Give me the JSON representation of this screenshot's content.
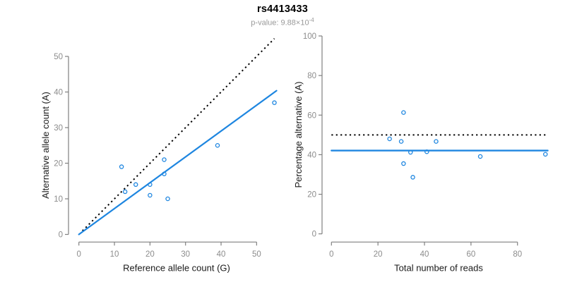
{
  "header": {
    "title": "rs4413433",
    "subtitle_main": "p-value: 9.88×10",
    "subtitle_sup": "-4"
  },
  "colors": {
    "accent_blue": "#1e86e0",
    "reference_black": "#000000",
    "axis_gray": "#808080",
    "tick_label_gray": "#8c8c8c",
    "subtitle_gray": "#999999"
  },
  "chart_data": [
    {
      "id": "allele-counts",
      "type": "scatter",
      "xlabel": "Reference allele count (G)",
      "ylabel": "Alternative allele count (A)",
      "xlim": [
        0,
        57
      ],
      "ylim": [
        0,
        57
      ],
      "xticks": [
        0,
        10,
        20,
        30,
        40,
        50
      ],
      "yticks": [
        0,
        10,
        20,
        30,
        40,
        50
      ],
      "grid": false,
      "legend": "none",
      "points": [
        [
          12,
          19
        ],
        [
          13,
          12
        ],
        [
          16,
          14
        ],
        [
          20,
          11
        ],
        [
          20,
          14
        ],
        [
          24,
          17
        ],
        [
          24,
          21
        ],
        [
          25,
          10
        ],
        [
          39,
          25
        ],
        [
          55,
          37
        ]
      ],
      "lines": [
        {
          "name": "identity-line",
          "kind": "slope",
          "slope": 1,
          "intercept": 0,
          "x_from": 1,
          "x_to": 55,
          "style": "dotted",
          "color": "#000000",
          "width": 2
        },
        {
          "name": "fit-line",
          "kind": "slope",
          "slope": 0.726,
          "intercept": 0,
          "x_from": 0,
          "x_to": 55.6,
          "style": "solid",
          "color": "#1e86e0",
          "width": 2.2
        }
      ]
    },
    {
      "id": "percentage-vs-reads",
      "type": "scatter",
      "xlabel": "Total number of reads",
      "ylabel": "Percentage alternative (A)",
      "xlim": [
        0,
        93
      ],
      "ylim": [
        0,
        100
      ],
      "xticks": [
        0,
        20,
        40,
        60,
        80
      ],
      "yticks": [
        0,
        20,
        40,
        60,
        80,
        100
      ],
      "grid": false,
      "legend": "none",
      "points": [
        [
          25,
          48.0
        ],
        [
          30,
          46.7
        ],
        [
          31,
          61.3
        ],
        [
          31,
          35.5
        ],
        [
          34,
          41.2
        ],
        [
          35,
          28.6
        ],
        [
          41,
          41.5
        ],
        [
          45,
          46.7
        ],
        [
          64,
          39.1
        ],
        [
          92,
          40.2
        ]
      ],
      "lines": [
        {
          "name": "expected-50-percent-line",
          "kind": "horizontal",
          "y": 50,
          "x_from": 0,
          "x_to": 93,
          "style": "dotted",
          "color": "#000000",
          "width": 2
        },
        {
          "name": "mean-percentage-line",
          "kind": "horizontal",
          "y": 42.1,
          "x_from": 0,
          "x_to": 93,
          "style": "solid",
          "color": "#1e86e0",
          "width": 2.4
        }
      ]
    }
  ]
}
